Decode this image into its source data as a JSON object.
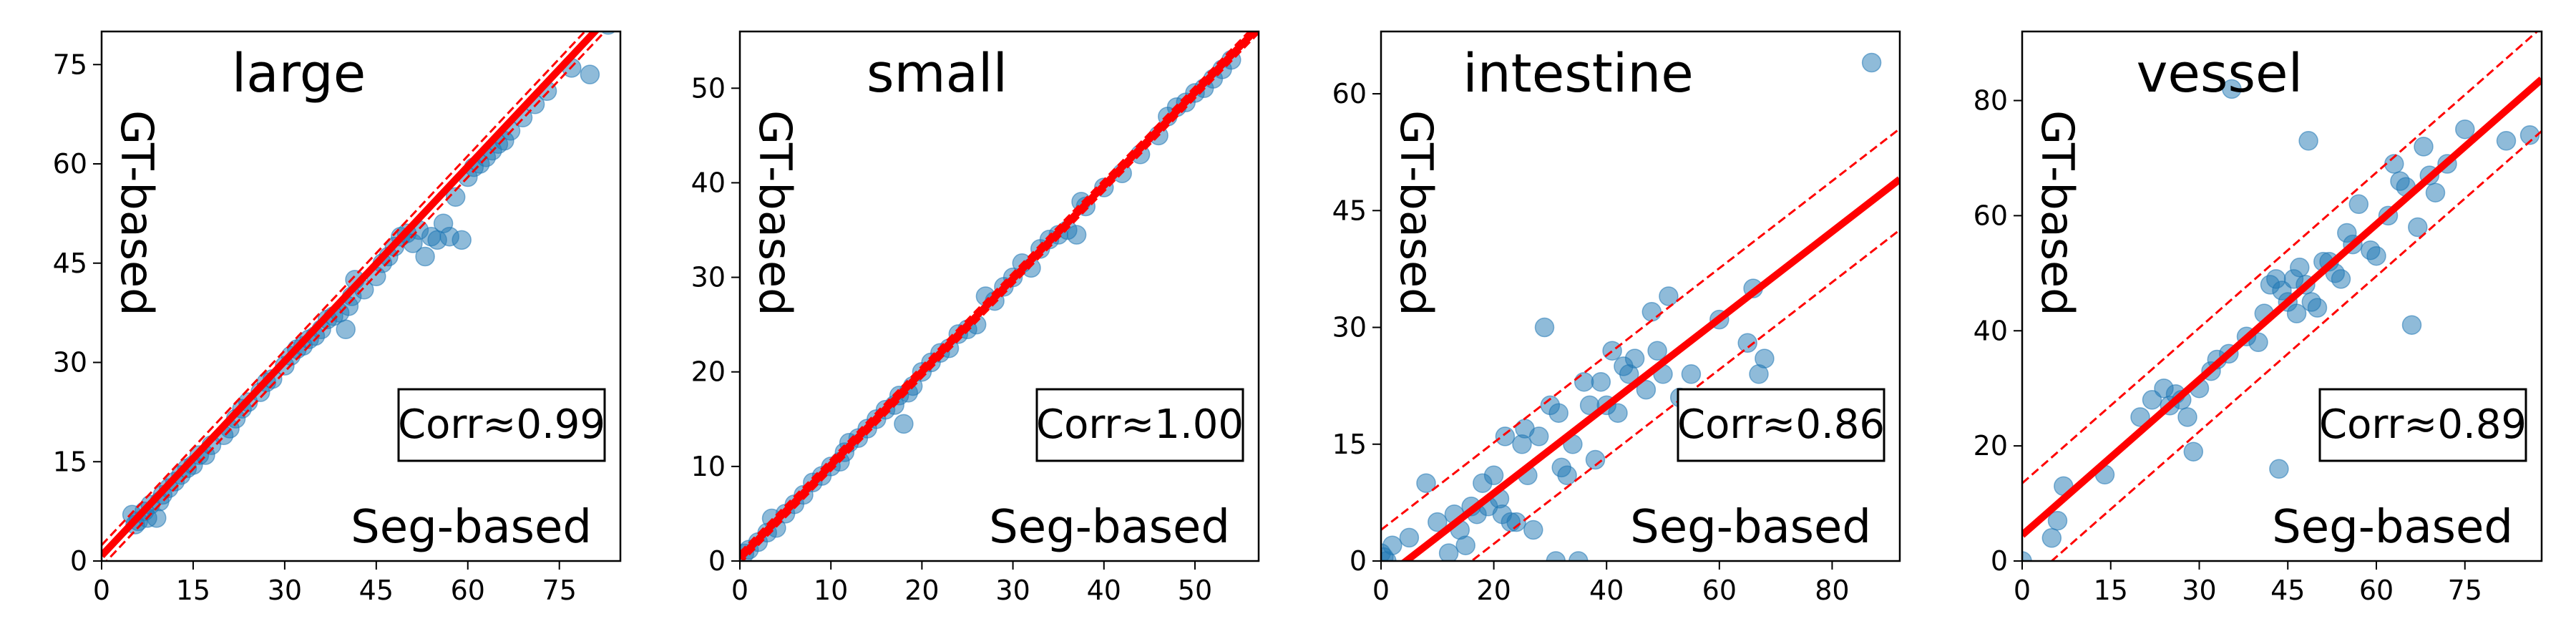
{
  "chart_data": [
    {
      "type": "scatter",
      "title": "large",
      "ylabel_inset": "GT-based",
      "xlabel_inset": "Seg-based",
      "corr_label": "Corr≈0.99",
      "xlim": [
        0,
        85
      ],
      "ylim": [
        0,
        80
      ],
      "xticks": [
        "0",
        "15",
        "30",
        "45",
        "60",
        "75"
      ],
      "yticks": [
        "0",
        "15",
        "30",
        "45",
        "60",
        "75"
      ],
      "xtick_values": [
        0,
        15,
        30,
        45,
        60,
        75
      ],
      "ytick_values": [
        0,
        15,
        30,
        45,
        60,
        75
      ],
      "fit": {
        "slope": 0.98,
        "intercept": 0.8
      },
      "band": 1.6,
      "points": [
        [
          5,
          7
        ],
        [
          5.5,
          5.5
        ],
        [
          6,
          6
        ],
        [
          7,
          7.5
        ],
        [
          7.5,
          6.5
        ],
        [
          8,
          8.5
        ],
        [
          9,
          6.5
        ],
        [
          9.5,
          9
        ],
        [
          10,
          10
        ],
        [
          11,
          11
        ],
        [
          12,
          12
        ],
        [
          13,
          13
        ],
        [
          14,
          14
        ],
        [
          15,
          14.5
        ],
        [
          16,
          16
        ],
        [
          17,
          16
        ],
        [
          18,
          17.5
        ],
        [
          20,
          19
        ],
        [
          21,
          20
        ],
        [
          22,
          21.5
        ],
        [
          23,
          23
        ],
        [
          24,
          24
        ],
        [
          26,
          25.5
        ],
        [
          27,
          27
        ],
        [
          28,
          27.5
        ],
        [
          30,
          29.5
        ],
        [
          31,
          31
        ],
        [
          32,
          32
        ],
        [
          33,
          32.5
        ],
        [
          34,
          33.5
        ],
        [
          35,
          34
        ],
        [
          36,
          35
        ],
        [
          37,
          36.5
        ],
        [
          38,
          37
        ],
        [
          39,
          37.5
        ],
        [
          40,
          35
        ],
        [
          40.5,
          38.5
        ],
        [
          41,
          40
        ],
        [
          41.5,
          42.5
        ],
        [
          43,
          41
        ],
        [
          45,
          43
        ],
        [
          46,
          45
        ],
        [
          47,
          46
        ],
        [
          48,
          47.5
        ],
        [
          49,
          49
        ],
        [
          50,
          49.5
        ],
        [
          51,
          48
        ],
        [
          52,
          50
        ],
        [
          53,
          46
        ],
        [
          54,
          49
        ],
        [
          55,
          48.5
        ],
        [
          56,
          51
        ],
        [
          57,
          49
        ],
        [
          58,
          55
        ],
        [
          59,
          48.5
        ],
        [
          60,
          58
        ],
        [
          61,
          59.5
        ],
        [
          62,
          60
        ],
        [
          63,
          61
        ],
        [
          64,
          62
        ],
        [
          65,
          63
        ],
        [
          66,
          63.5
        ],
        [
          67,
          65
        ],
        [
          69,
          67
        ],
        [
          71,
          69
        ],
        [
          73,
          71
        ],
        [
          77,
          74.5
        ],
        [
          80,
          73.5
        ],
        [
          83,
          81
        ]
      ]
    },
    {
      "type": "scatter",
      "title": "small",
      "ylabel_inset": "GT-based",
      "xlabel_inset": "Seg-based",
      "corr_label": "Corr≈1.00",
      "xlim": [
        0,
        57
      ],
      "ylim": [
        0,
        56
      ],
      "xticks": [
        "0",
        "10",
        "20",
        "30",
        "40",
        "50"
      ],
      "yticks": [
        "0",
        "10",
        "20",
        "30",
        "40",
        "50"
      ],
      "xtick_values": [
        0,
        10,
        20,
        30,
        40,
        50
      ],
      "ytick_values": [
        0,
        10,
        20,
        30,
        40,
        50
      ],
      "fit": {
        "slope": 0.985,
        "intercept": 0.3
      },
      "band": 0.6,
      "points": [
        [
          0.5,
          0.8
        ],
        [
          1,
          1.2
        ],
        [
          2,
          2
        ],
        [
          3,
          3
        ],
        [
          3.5,
          4.5
        ],
        [
          4,
          3.5
        ],
        [
          5,
          5
        ],
        [
          6,
          6
        ],
        [
          7,
          7
        ],
        [
          8,
          8.3
        ],
        [
          9,
          9
        ],
        [
          10,
          10
        ],
        [
          11,
          10.5
        ],
        [
          11.5,
          11.5
        ],
        [
          12,
          12.5
        ],
        [
          13,
          13
        ],
        [
          14,
          14
        ],
        [
          15,
          15
        ],
        [
          16,
          16
        ],
        [
          17,
          16.5
        ],
        [
          17.5,
          17.5
        ],
        [
          18,
          14.5
        ],
        [
          18.5,
          17.8
        ],
        [
          19,
          18.5
        ],
        [
          20,
          20
        ],
        [
          21,
          21
        ],
        [
          22,
          22
        ],
        [
          23,
          22.5
        ],
        [
          24,
          24
        ],
        [
          25,
          24.5
        ],
        [
          26,
          25
        ],
        [
          27,
          28
        ],
        [
          28,
          27.5
        ],
        [
          29,
          29
        ],
        [
          30,
          30
        ],
        [
          31,
          31.5
        ],
        [
          32,
          31
        ],
        [
          33,
          33
        ],
        [
          34,
          34
        ],
        [
          35,
          34.5
        ],
        [
          36,
          35
        ],
        [
          37,
          34.5
        ],
        [
          37.5,
          38
        ],
        [
          38,
          37.5
        ],
        [
          40,
          39.5
        ],
        [
          42,
          41
        ],
        [
          44,
          43
        ],
        [
          46,
          45
        ],
        [
          47,
          47
        ],
        [
          48,
          48
        ],
        [
          49,
          48.5
        ],
        [
          50,
          49.5
        ],
        [
          51,
          50
        ],
        [
          52,
          51
        ],
        [
          53,
          52
        ],
        [
          54,
          53
        ]
      ]
    },
    {
      "type": "scatter",
      "title": "intestine",
      "ylabel_inset": "GT-based",
      "xlabel_inset": "Seg-based",
      "corr_label": "Corr≈0.86",
      "xlim": [
        0,
        92
      ],
      "ylim": [
        0,
        68
      ],
      "xticks": [
        "0",
        "20",
        "40",
        "60",
        "80"
      ],
      "yticks": [
        "0",
        "15",
        "30",
        "45",
        "60"
      ],
      "xtick_values": [
        0,
        20,
        40,
        60,
        80
      ],
      "ytick_values": [
        0,
        15,
        30,
        45,
        60
      ],
      "fit": {
        "slope": 0.56,
        "intercept": -2.5
      },
      "band": 6.5,
      "points": [
        [
          0,
          1
        ],
        [
          0.5,
          0.5
        ],
        [
          1,
          0
        ],
        [
          2,
          2
        ],
        [
          5,
          3
        ],
        [
          8,
          10
        ],
        [
          10,
          5
        ],
        [
          12,
          1
        ],
        [
          13,
          6
        ],
        [
          14,
          4
        ],
        [
          15,
          2
        ],
        [
          16,
          7
        ],
        [
          17,
          6
        ],
        [
          18,
          10
        ],
        [
          19,
          7
        ],
        [
          20,
          11
        ],
        [
          21,
          8
        ],
        [
          21.5,
          6
        ],
        [
          22,
          16
        ],
        [
          23,
          5
        ],
        [
          24,
          5
        ],
        [
          25,
          15
        ],
        [
          25.5,
          17
        ],
        [
          26,
          11
        ],
        [
          27,
          4
        ],
        [
          28,
          16
        ],
        [
          29,
          30
        ],
        [
          30,
          20
        ],
        [
          31,
          0
        ],
        [
          31.5,
          19
        ],
        [
          32,
          12
        ],
        [
          33,
          11
        ],
        [
          34,
          15
        ],
        [
          35,
          0
        ],
        [
          36,
          23
        ],
        [
          37,
          20
        ],
        [
          38,
          13
        ],
        [
          39,
          23
        ],
        [
          40,
          20
        ],
        [
          41,
          27
        ],
        [
          42,
          19
        ],
        [
          43,
          25
        ],
        [
          44,
          24
        ],
        [
          45,
          26
        ],
        [
          47,
          22
        ],
        [
          48,
          32
        ],
        [
          49,
          27
        ],
        [
          50,
          24
        ],
        [
          51,
          34
        ],
        [
          53,
          21
        ],
        [
          55,
          24
        ],
        [
          60,
          31
        ],
        [
          65,
          28
        ],
        [
          66,
          35
        ],
        [
          67,
          24
        ],
        [
          68,
          26
        ],
        [
          87,
          64
        ]
      ]
    },
    {
      "type": "scatter",
      "title": "vessel",
      "ylabel_inset": "GT-based",
      "xlabel_inset": "Seg-based",
      "corr_label": "Corr≈0.89",
      "xlim": [
        0,
        88
      ],
      "ylim": [
        0,
        92
      ],
      "xticks": [
        "0",
        "15",
        "30",
        "45",
        "60",
        "75"
      ],
      "yticks": [
        "0",
        "20",
        "40",
        "60",
        "80"
      ],
      "xtick_values": [
        0,
        15,
        30,
        45,
        60,
        75
      ],
      "ytick_values": [
        0,
        20,
        40,
        60,
        80
      ],
      "fit": {
        "slope": 0.9,
        "intercept": 4.5
      },
      "band": 9,
      "points": [
        [
          0,
          0
        ],
        [
          5,
          4
        ],
        [
          6,
          7
        ],
        [
          7,
          13
        ],
        [
          14,
          15
        ],
        [
          20,
          25
        ],
        [
          22,
          28
        ],
        [
          24,
          30
        ],
        [
          25,
          27
        ],
        [
          26,
          29
        ],
        [
          27,
          28
        ],
        [
          28,
          25
        ],
        [
          29,
          19
        ],
        [
          30,
          30
        ],
        [
          32,
          33
        ],
        [
          33,
          35
        ],
        [
          35,
          36
        ],
        [
          35.5,
          82
        ],
        [
          38,
          39
        ],
        [
          40,
          38
        ],
        [
          41,
          43
        ],
        [
          42,
          48
        ],
        [
          43,
          49
        ],
        [
          43.5,
          16
        ],
        [
          44,
          47
        ],
        [
          45,
          45
        ],
        [
          46,
          49
        ],
        [
          46.5,
          43
        ],
        [
          47,
          51
        ],
        [
          48,
          48
        ],
        [
          48.5,
          73
        ],
        [
          49,
          45
        ],
        [
          50,
          44
        ],
        [
          51,
          52
        ],
        [
          52,
          52
        ],
        [
          53,
          50
        ],
        [
          54,
          49
        ],
        [
          55,
          57
        ],
        [
          56,
          55
        ],
        [
          57,
          62
        ],
        [
          59,
          54
        ],
        [
          60,
          53
        ],
        [
          62,
          60
        ],
        [
          63,
          69
        ],
        [
          64,
          66
        ],
        [
          65,
          65
        ],
        [
          66,
          41
        ],
        [
          67,
          58
        ],
        [
          68,
          72
        ],
        [
          69,
          67
        ],
        [
          70,
          64
        ],
        [
          72,
          69
        ],
        [
          75,
          75
        ],
        [
          82,
          73
        ],
        [
          86,
          74
        ]
      ]
    }
  ]
}
